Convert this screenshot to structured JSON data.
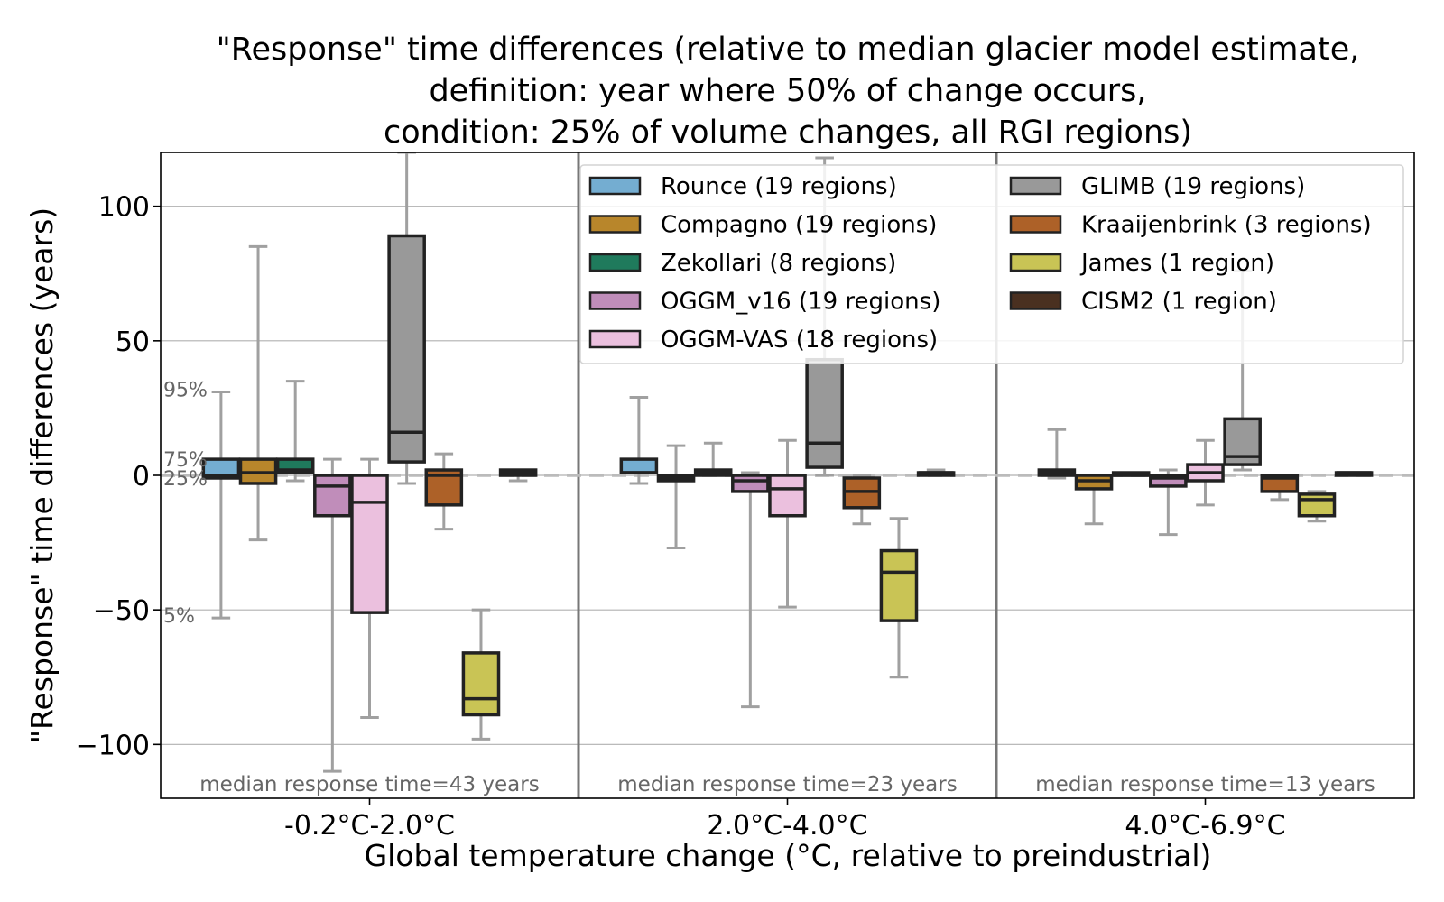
{
  "chart_data": {
    "type": "box",
    "title": [
      "\"Response\" time differences (relative to median glacier model estimate,",
      "definition: year where 50% of change occurs,",
      "condition: 25% of volume changes, all RGI regions)"
    ],
    "xlabel": "Global temperature change (°C, relative to preindustrial)",
    "ylabel": "\"Response\" time differences (years)",
    "ylim": [
      -120,
      120
    ],
    "yticks": [
      100,
      50,
      0,
      -50,
      -100
    ],
    "ytick_labels": [
      "100",
      "50",
      "0",
      "−50",
      "−100"
    ],
    "grid": true,
    "legend_position": "top-right",
    "reference_line": 0,
    "percentile_labels": [
      {
        "label": "95%",
        "value": 32
      },
      {
        "label": "75%",
        "value": 6
      },
      {
        "label": "25%",
        "value": -1
      },
      {
        "label": "5%",
        "value": -52
      }
    ],
    "categories": [
      "-0.2°C-2.0°C",
      "2.0°C-4.0°C",
      "4.0°C-6.9°C"
    ],
    "notes": [
      "median response time=43 years",
      "median response time=23 years",
      "median response time=13 years"
    ],
    "series": [
      {
        "name": "Rounce (19 regions)",
        "color": "#74add1",
        "boxes": [
          {
            "whislo": -53,
            "q1": -1,
            "med": 0,
            "q3": 6,
            "whishi": 31
          },
          {
            "whislo": -3,
            "q1": 1,
            "med": 1,
            "q3": 6,
            "whishi": 29
          },
          {
            "whislo": -1,
            "q1": 0,
            "med": 1,
            "q3": 2,
            "whishi": 17
          }
        ]
      },
      {
        "name": "Compagno (19 regions)",
        "color": "#b8862b",
        "boxes": [
          {
            "whislo": -24,
            "q1": -3,
            "med": 1,
            "q3": 6,
            "whishi": 85
          },
          {
            "whislo": -27,
            "q1": -2,
            "med": -1,
            "q3": 0,
            "whishi": 11
          },
          {
            "whislo": -18,
            "q1": -5,
            "med": -2,
            "q3": 0,
            "whishi": 0
          }
        ]
      },
      {
        "name": "Zekollari (8 regions)",
        "color": "#1f7a5c",
        "boxes": [
          {
            "whislo": -2,
            "q1": 1,
            "med": 2,
            "q3": 6,
            "whishi": 35
          },
          {
            "whislo": 0,
            "q1": 0,
            "med": 1,
            "q3": 2,
            "whishi": 12
          },
          {
            "whislo": 0,
            "q1": 0,
            "med": 0,
            "q3": 1,
            "whishi": 1
          }
        ]
      },
      {
        "name": "OGGM_v16 (19 regions)",
        "color": "#c08dba",
        "boxes": [
          {
            "whislo": -110,
            "q1": -15,
            "med": -4,
            "q3": 0,
            "whishi": 6
          },
          {
            "whislo": -86,
            "q1": -6,
            "med": -2,
            "q3": 0,
            "whishi": 1
          },
          {
            "whislo": -22,
            "q1": -4,
            "med": -1,
            "q3": 0,
            "whishi": 2
          }
        ]
      },
      {
        "name": "OGGM-VAS (18 regions)",
        "color": "#ebc0de",
        "boxes": [
          {
            "whislo": -90,
            "q1": -51,
            "med": -10,
            "q3": 0,
            "whishi": 6
          },
          {
            "whislo": -49,
            "q1": -15,
            "med": -5,
            "q3": 0,
            "whishi": 13
          },
          {
            "whislo": -11,
            "q1": -2,
            "med": 1,
            "q3": 4,
            "whishi": 13
          }
        ]
      },
      {
        "name": "GLIMB (19 regions)",
        "color": "#999999",
        "boxes": [
          {
            "whislo": -3,
            "q1": 5,
            "med": 16,
            "q3": 89,
            "whishi": 120
          },
          {
            "whislo": 0,
            "q1": 3,
            "med": 12,
            "q3": 43,
            "whishi": 118
          },
          {
            "whislo": 2,
            "q1": 4,
            "med": 7,
            "q3": 21,
            "whishi": 76
          }
        ]
      },
      {
        "name": "Kraaijenbrink (3 regions)",
        "color": "#ad6128",
        "boxes": [
          {
            "whislo": -20,
            "q1": -11,
            "med": 0,
            "q3": 2,
            "whishi": 8
          },
          {
            "whislo": -18,
            "q1": -12,
            "med": -6,
            "q3": -1,
            "whishi": 0
          },
          {
            "whislo": -9,
            "q1": -6,
            "med": -1,
            "q3": 0,
            "whishi": 0
          }
        ]
      },
      {
        "name": "James (1 region)",
        "color": "#c9c455",
        "boxes": [
          {
            "whislo": -98,
            "q1": -89,
            "med": -83,
            "q3": -66,
            "whishi": -50
          },
          {
            "whislo": -75,
            "q1": -54,
            "med": -36,
            "q3": -28,
            "whishi": -16
          },
          {
            "whislo": -17,
            "q1": -15,
            "med": -9,
            "q3": -7,
            "whishi": -6
          }
        ]
      },
      {
        "name": "CISM2 (1 region)",
        "color": "#4a3020",
        "boxes": [
          {
            "whislo": -2,
            "q1": 0,
            "med": 1,
            "q3": 2,
            "whishi": 2
          },
          {
            "whislo": 0,
            "q1": 0,
            "med": 1,
            "q3": 1,
            "whishi": 2
          },
          {
            "whislo": 0,
            "q1": 0,
            "med": 1,
            "q3": 1,
            "whishi": 1
          }
        ]
      }
    ]
  }
}
